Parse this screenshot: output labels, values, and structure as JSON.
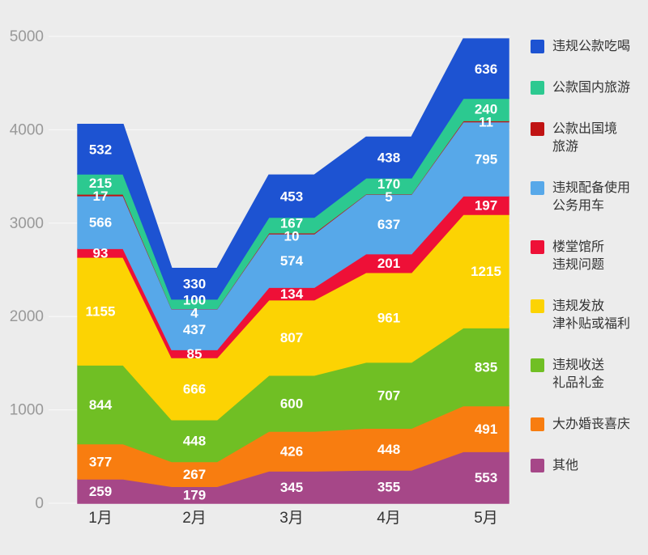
{
  "page": {
    "background": "#ececec"
  },
  "axis": {
    "y_label_color": "#999999",
    "x_label_color": "#333333",
    "grid_color": "rgba(255,255,255,0.75)"
  },
  "data_label_color": "#ffffff",
  "chart_data": {
    "type": "area",
    "stacked": true,
    "title": "",
    "xlabel": "",
    "ylabel": "",
    "x_categories": [
      "1月",
      "2月",
      "3月",
      "4月",
      "5月"
    ],
    "y_ticks": [
      0,
      1000,
      2000,
      3000,
      4000,
      5000
    ],
    "ylim": [
      0,
      5000
    ],
    "grid": true,
    "legend_position": "right",
    "series_bottom_to_top": [
      {
        "name": "其他",
        "legend_label": "其他",
        "color": "#a64788",
        "values": [
          259,
          179,
          345,
          355,
          553
        ]
      },
      {
        "name": "大办婚丧喜庆",
        "legend_label": "大办婚丧喜庆",
        "color": "#f87d10",
        "values": [
          377,
          267,
          426,
          448,
          491
        ]
      },
      {
        "name": "违规收送礼品礼金",
        "legend_label": "违规收送\n礼品礼金",
        "color": "#70bf24",
        "values": [
          844,
          448,
          600,
          707,
          835
        ]
      },
      {
        "name": "违规发放津补贴或福利",
        "legend_label": "违规发放\n津补贴或福利",
        "color": "#fcd303",
        "values": [
          1155,
          666,
          807,
          961,
          1215
        ]
      },
      {
        "name": "楼堂馆所违规问题",
        "legend_label": "楼堂馆所\n违规问题",
        "color": "#ee1037",
        "values": [
          93,
          85,
          134,
          201,
          197
        ]
      },
      {
        "name": "违规配备使用公务用车",
        "legend_label": "违规配备使用\n公务用车",
        "color": "#57a8e9",
        "values": [
          566,
          437,
          574,
          637,
          795
        ]
      },
      {
        "name": "公款出国境旅游",
        "legend_label": "公款出国境\n旅游",
        "color": "#c01313",
        "values": [
          17,
          4,
          10,
          5,
          11
        ]
      },
      {
        "name": "公款国内旅游",
        "legend_label": "公款国内旅游",
        "color": "#2cc990",
        "values": [
          215,
          100,
          167,
          170,
          240
        ]
      },
      {
        "name": "违规公款吃喝",
        "legend_label": "违规公款吃喝",
        "color": "#1d53d2",
        "values": [
          532,
          330,
          453,
          438,
          636
        ]
      }
    ]
  }
}
